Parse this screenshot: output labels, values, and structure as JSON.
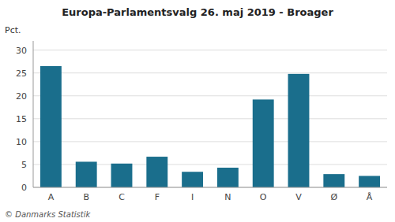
{
  "chart_data": {
    "type": "bar",
    "title": "Europa-Parlamentsvalg 26. maj 2019 - Broager",
    "ylabel": "Pct.",
    "annotations": [
      "© Danmarks Statistik"
    ],
    "categories": [
      "A",
      "B",
      "C",
      "F",
      "I",
      "N",
      "O",
      "V",
      "Ø",
      "Å"
    ],
    "values": [
      26.5,
      5.6,
      5.2,
      6.7,
      3.4,
      4.3,
      19.2,
      24.8,
      2.9,
      2.5
    ],
    "color": "#1a6e8c",
    "ylim": [
      0,
      32
    ],
    "yticks": [
      0,
      5,
      10,
      15,
      20,
      25,
      30
    ],
    "grid": true
  }
}
